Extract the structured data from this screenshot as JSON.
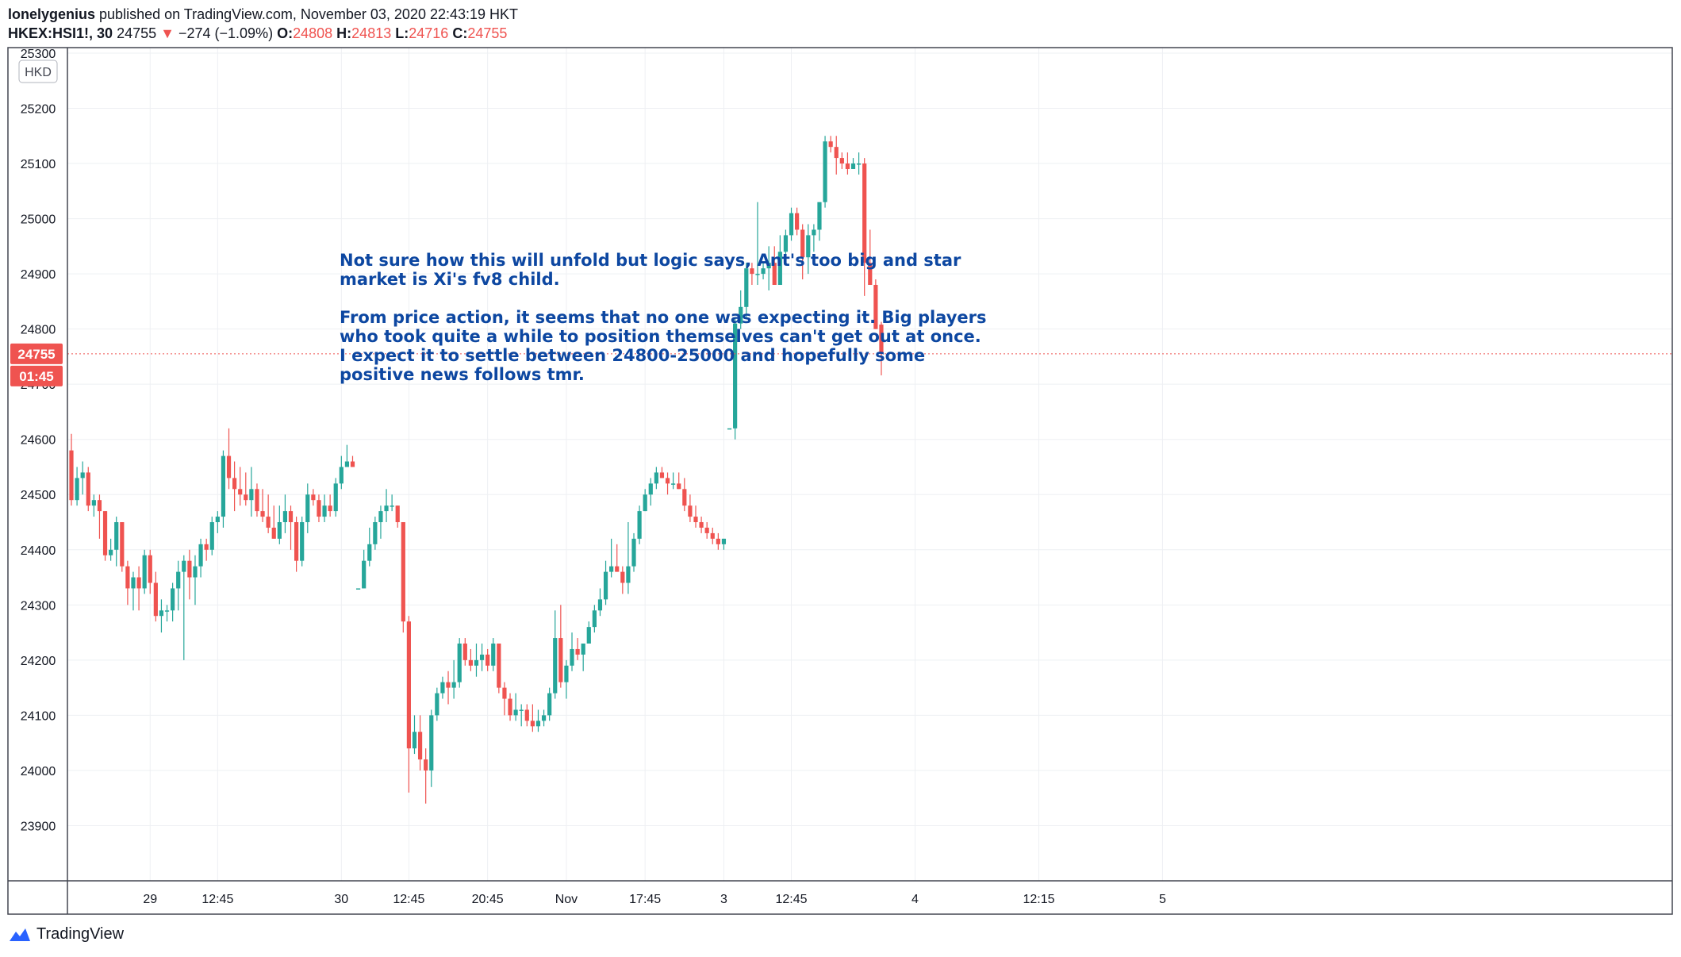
{
  "header": {
    "author": "lonelygenius",
    "published_text": " published on TradingView.com, November 03, 2020 22:43:19 HKT",
    "symbol": "HKEX:HSI1!, 30",
    "last": "24755",
    "change_arrow": "▼",
    "change": "−274 (−1.09%)",
    "o_label": "O:",
    "o_value": "24808",
    "h_label": "H:",
    "h_value": "24813",
    "l_label": "L:",
    "l_value": "24716",
    "c_label": "C:",
    "c_value": "24755"
  },
  "currency_label": "HKD",
  "price_badge": "24755",
  "timer_badge": "01:45",
  "annotation": "Not sure how this will unfold but logic says, Ant's too big and star\nmarket is Xi's fv8 child.\n\nFrom price action, it seems that no one was expecting it. Big players\nwho took quite a while to position themselves can't get out at once.\nI expect it to settle between 24800-25000 and hopefully some\npositive news follows tmr.",
  "footer": {
    "brand": "TradingView",
    "logo_icon": "tradingview-logo-icon"
  },
  "colors": {
    "up": "#26a69a",
    "down": "#ef5350",
    "annotation": "#0d47a1"
  },
  "chart_data": {
    "type": "candlestick",
    "ylim": [
      23800,
      25310
    ],
    "y_ticks": [
      23900,
      24000,
      24100,
      24200,
      24300,
      24400,
      24500,
      24600,
      24700,
      24800,
      24900,
      25000,
      25100,
      25200,
      25300
    ],
    "y_tick_labels": [
      "23900",
      "24000",
      "24100",
      "24200",
      "24300",
      "24400",
      "24500",
      "24600",
      "24700",
      "24800",
      "24900",
      "25000",
      "25100",
      "25200",
      "25300"
    ],
    "x_ticks": [
      {
        "index": 14,
        "label": "29"
      },
      {
        "index": 26,
        "label": "12:45"
      },
      {
        "index": 48,
        "label": "30"
      },
      {
        "index": 60,
        "label": "12:45"
      },
      {
        "index": 74,
        "label": "20:45"
      },
      {
        "index": 88,
        "label": "Nov"
      },
      {
        "index": 102,
        "label": "17:45"
      },
      {
        "index": 116,
        "label": "3"
      },
      {
        "index": 128,
        "label": "12:45"
      },
      {
        "index": 150,
        "label": "4"
      },
      {
        "index": 172,
        "label": "12:15"
      },
      {
        "index": 194,
        "label": "5"
      }
    ],
    "last_price": 24755,
    "candles": [
      [
        24580,
        24610,
        24480,
        24490
      ],
      [
        24490,
        24550,
        24480,
        24530
      ],
      [
        24530,
        24560,
        24500,
        24540
      ],
      [
        24540,
        24550,
        24470,
        24480
      ],
      [
        24480,
        24500,
        24460,
        24490
      ],
      [
        24490,
        24500,
        24420,
        24470
      ],
      [
        24470,
        24470,
        24380,
        24390
      ],
      [
        24390,
        24420,
        24380,
        24400
      ],
      [
        24400,
        24460,
        24370,
        24450
      ],
      [
        24450,
        24450,
        24360,
        24370
      ],
      [
        24370,
        24380,
        24300,
        24330
      ],
      [
        24330,
        24360,
        24290,
        24350
      ],
      [
        24350,
        24370,
        24290,
        24330
      ],
      [
        24330,
        24400,
        24320,
        24390
      ],
      [
        24390,
        24400,
        24320,
        24340
      ],
      [
        24340,
        24360,
        24270,
        24280
      ],
      [
        24280,
        24310,
        24250,
        24290
      ],
      [
        24290,
        24300,
        24270,
        24290
      ],
      [
        24290,
        24340,
        24270,
        24330
      ],
      [
        24330,
        24380,
        24290,
        24360
      ],
      [
        24360,
        24390,
        24200,
        24380
      ],
      [
        24380,
        24400,
        24310,
        24350
      ],
      [
        24350,
        24390,
        24300,
        24370
      ],
      [
        24370,
        24420,
        24350,
        24410
      ],
      [
        24410,
        24420,
        24380,
        24400
      ],
      [
        24400,
        24460,
        24390,
        24450
      ],
      [
        24450,
        24470,
        24430,
        24460
      ],
      [
        24460,
        24580,
        24440,
        24570
      ],
      [
        24570,
        24620,
        24510,
        24530
      ],
      [
        24530,
        24560,
        24470,
        24510
      ],
      [
        24510,
        24550,
        24480,
        24500
      ],
      [
        24500,
        24540,
        24480,
        24490
      ],
      [
        24490,
        24550,
        24460,
        24510
      ],
      [
        24510,
        24520,
        24460,
        24470
      ],
      [
        24470,
        24510,
        24450,
        24460
      ],
      [
        24460,
        24500,
        24430,
        24440
      ],
      [
        24440,
        24480,
        24420,
        24420
      ],
      [
        24420,
        24480,
        24410,
        24450
      ],
      [
        24450,
        24500,
        24430,
        24470
      ],
      [
        24470,
        24480,
        24400,
        24450
      ],
      [
        24450,
        24460,
        24360,
        24380
      ],
      [
        24380,
        24460,
        24370,
        24450
      ],
      [
        24450,
        24520,
        24430,
        24500
      ],
      [
        24500,
        24510,
        24480,
        24490
      ],
      [
        24490,
        24500,
        24450,
        24460
      ],
      [
        24460,
        24500,
        24450,
        24480
      ],
      [
        24480,
        24500,
        24460,
        24470
      ],
      [
        24470,
        24530,
        24460,
        24520
      ],
      [
        24520,
        24570,
        24510,
        24550
      ],
      [
        24550,
        24590,
        24550,
        24560
      ],
      [
        24560,
        24570,
        24550,
        24550
      ],
      [
        24330,
        24330,
        24330,
        24330
      ],
      [
        24330,
        24400,
        24330,
        24380
      ],
      [
        24380,
        24440,
        24370,
        24410
      ],
      [
        24410,
        24460,
        24400,
        24450
      ],
      [
        24450,
        24480,
        24420,
        24470
      ],
      [
        24470,
        24510,
        24450,
        24480
      ],
      [
        24480,
        24500,
        24470,
        24480
      ],
      [
        24480,
        24480,
        24440,
        24450
      ],
      [
        24450,
        24450,
        24250,
        24270
      ],
      [
        24270,
        24280,
        23960,
        24040
      ],
      [
        24040,
        24100,
        24030,
        24070
      ],
      [
        24070,
        24100,
        24000,
        24020
      ],
      [
        24020,
        24040,
        23940,
        24000
      ],
      [
        24000,
        24110,
        23970,
        24100
      ],
      [
        24100,
        24150,
        24090,
        24140
      ],
      [
        24140,
        24170,
        24130,
        24160
      ],
      [
        24160,
        24180,
        24120,
        24150
      ],
      [
        24150,
        24200,
        24130,
        24160
      ],
      [
        24160,
        24240,
        24150,
        24230
      ],
      [
        24230,
        24240,
        24190,
        24200
      ],
      [
        24200,
        24220,
        24180,
        24190
      ],
      [
        24190,
        24230,
        24170,
        24200
      ],
      [
        24200,
        24230,
        24180,
        24210
      ],
      [
        24210,
        24220,
        24180,
        24190
      ],
      [
        24190,
        24240,
        24180,
        24230
      ],
      [
        24230,
        24230,
        24140,
        24150
      ],
      [
        24150,
        24160,
        24100,
        24130
      ],
      [
        24130,
        24140,
        24090,
        24100
      ],
      [
        24100,
        24140,
        24090,
        24110
      ],
      [
        24110,
        24120,
        24080,
        24110
      ],
      [
        24110,
        24120,
        24080,
        24090
      ],
      [
        24090,
        24120,
        24070,
        24080
      ],
      [
        24080,
        24110,
        24070,
        24090
      ],
      [
        24090,
        24110,
        24080,
        24100
      ],
      [
        24100,
        24150,
        24090,
        24140
      ],
      [
        24140,
        24290,
        24130,
        24240
      ],
      [
        24240,
        24300,
        24150,
        24160
      ],
      [
        24160,
        24200,
        24130,
        24190
      ],
      [
        24190,
        24250,
        24180,
        24220
      ],
      [
        24220,
        24240,
        24200,
        24210
      ],
      [
        24210,
        24230,
        24180,
        24230
      ],
      [
        24230,
        24270,
        24230,
        24260
      ],
      [
        24260,
        24300,
        24250,
        24290
      ],
      [
        24290,
        24330,
        24280,
        24310
      ],
      [
        24310,
        24380,
        24300,
        24360
      ],
      [
        24360,
        24420,
        24350,
        24370
      ],
      [
        24370,
        24410,
        24360,
        24360
      ],
      [
        24360,
        24370,
        24320,
        24340
      ],
      [
        24340,
        24450,
        24320,
        24370
      ],
      [
        24370,
        24430,
        24360,
        24420
      ],
      [
        24420,
        24480,
        24410,
        24470
      ],
      [
        24470,
        24510,
        24470,
        24500
      ],
      [
        24500,
        24530,
        24480,
        24520
      ],
      [
        24520,
        24550,
        24510,
        24540
      ],
      [
        24540,
        24550,
        24530,
        24530
      ],
      [
        24530,
        24540,
        24500,
        24520
      ],
      [
        24520,
        24540,
        24510,
        24520
      ],
      [
        24520,
        24540,
        24510,
        24510
      ],
      [
        24510,
        24530,
        24470,
        24480
      ],
      [
        24480,
        24500,
        24450,
        24460
      ],
      [
        24460,
        24480,
        24440,
        24450
      ],
      [
        24450,
        24460,
        24430,
        24440
      ],
      [
        24440,
        24450,
        24420,
        24430
      ],
      [
        24430,
        24440,
        24410,
        24420
      ],
      [
        24420,
        24430,
        24400,
        24410
      ],
      [
        24410,
        24420,
        24400,
        24420
      ],
      [
        24620,
        24620,
        24620,
        24620
      ],
      [
        24620,
        24820,
        24600,
        24810
      ],
      [
        24810,
        24870,
        24800,
        24840
      ],
      [
        24840,
        24920,
        24820,
        24910
      ],
      [
        24910,
        24920,
        24880,
        24900
      ],
      [
        24900,
        25030,
        24880,
        24900
      ],
      [
        24900,
        24920,
        24890,
        24910
      ],
      [
        24910,
        24950,
        24870,
        24920
      ],
      [
        24920,
        24950,
        24890,
        24880
      ],
      [
        24880,
        24970,
        24880,
        24940
      ],
      [
        24940,
        24980,
        24920,
        24970
      ],
      [
        24970,
        25020,
        24960,
        25010
      ],
      [
        25010,
        25020,
        24970,
        24980
      ],
      [
        24980,
        24990,
        24890,
        24930
      ],
      [
        24930,
        24990,
        24900,
        24970
      ],
      [
        24970,
        24990,
        24940,
        24980
      ],
      [
        24980,
        25020,
        24960,
        25030
      ],
      [
        25030,
        25150,
        25020,
        25140
      ],
      [
        25140,
        25150,
        25120,
        25130
      ],
      [
        25130,
        25150,
        25080,
        25110
      ],
      [
        25110,
        25120,
        25090,
        25100
      ],
      [
        25100,
        25120,
        25080,
        25090
      ],
      [
        25090,
        25110,
        25090,
        25100
      ],
      [
        25100,
        25120,
        25080,
        25100
      ],
      [
        25100,
        25110,
        24860,
        24920
      ],
      [
        24920,
        24980,
        24880,
        24880
      ],
      [
        24880,
        24890,
        24800,
        24800
      ],
      [
        24808,
        24813,
        24716,
        24755
      ]
    ]
  }
}
